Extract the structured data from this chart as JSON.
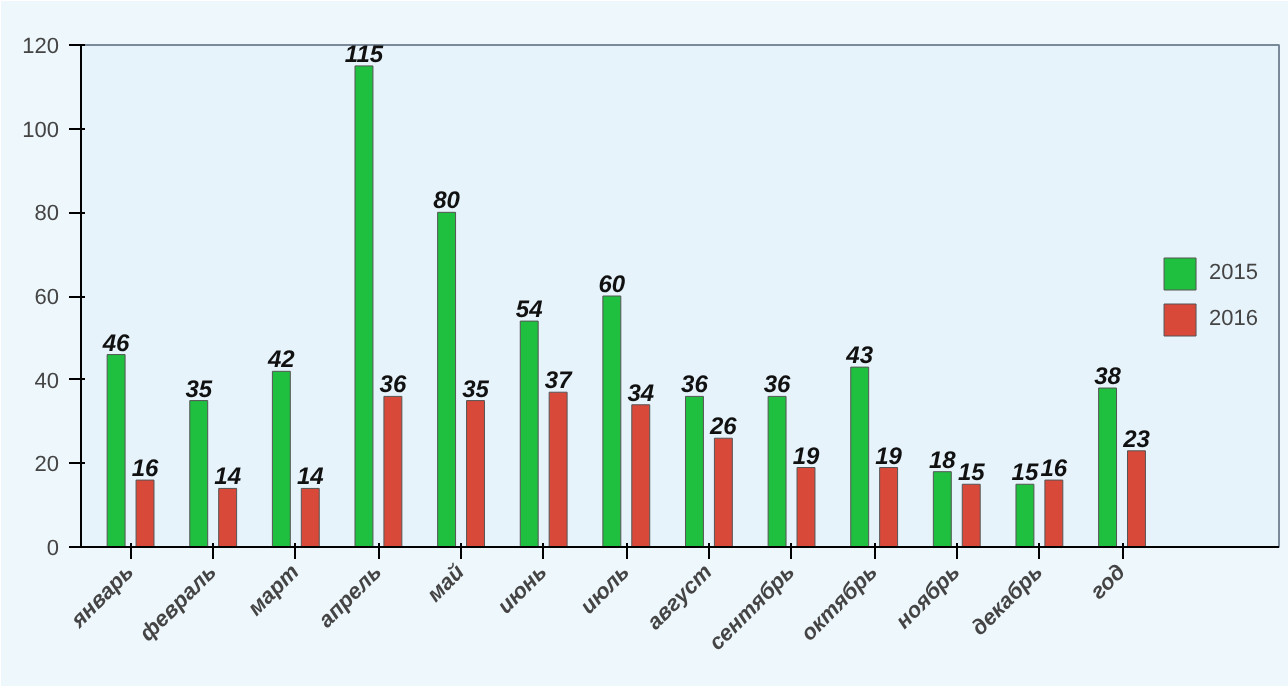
{
  "chart_data": {
    "type": "bar",
    "categories": [
      "январь",
      "февраль",
      "март",
      "апрель",
      "май",
      "июнь",
      "июль",
      "август",
      "сентябрь",
      "октябрь",
      "ноябрь",
      "декабрь",
      "год"
    ],
    "series": [
      {
        "name": "2015",
        "color": "#1fbf3f",
        "values": [
          46,
          35,
          42,
          115,
          80,
          54,
          60,
          36,
          36,
          43,
          18,
          15,
          38
        ]
      },
      {
        "name": "2016",
        "color": "#d9493a",
        "values": [
          16,
          14,
          14,
          36,
          35,
          37,
          34,
          26,
          19,
          19,
          15,
          16,
          23
        ]
      }
    ],
    "ylim": [
      0,
      120
    ],
    "yticks": [
      0,
      20,
      40,
      60,
      80,
      100,
      120
    ],
    "grid": false,
    "legend": "right",
    "data_labels": true
  }
}
